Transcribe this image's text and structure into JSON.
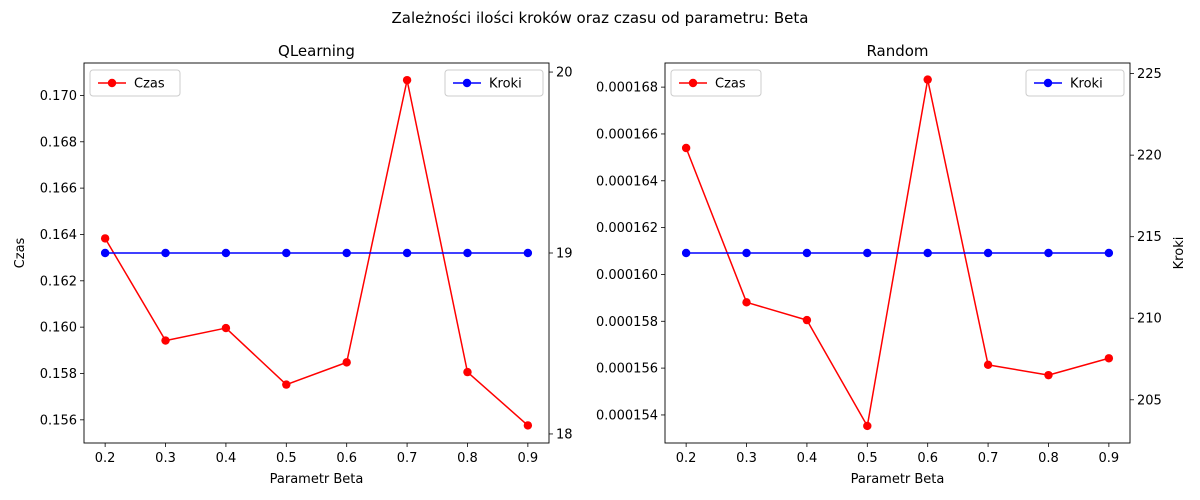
{
  "figure": {
    "suptitle": "Zależności ilości kroków oraz czasu od parametru: Beta"
  },
  "chart_data": [
    {
      "type": "line",
      "title": "QLearning",
      "xlabel": "Parametr Beta",
      "ylabel": "Czas",
      "y2label": "",
      "x": [
        0.2,
        0.3,
        0.4,
        0.5,
        0.6,
        0.7,
        0.8,
        0.9
      ],
      "xticks": [
        "0.2",
        "0.3",
        "0.4",
        "0.5",
        "0.6",
        "0.7",
        "0.8",
        "0.9"
      ],
      "xlim": [
        0.165,
        0.935
      ],
      "ylim": [
        0.155,
        0.1714
      ],
      "yticks": [
        "0.156",
        "0.158",
        "0.160",
        "0.162",
        "0.164",
        "0.166",
        "0.168",
        "0.170"
      ],
      "y2lim": [
        17.95,
        20.05
      ],
      "y2ticks": [
        "18",
        "19",
        "20"
      ],
      "grid": false,
      "series": [
        {
          "name": "Czas",
          "axis": "left",
          "color": "#ff0000",
          "legend": "top-left",
          "values": [
            0.16383,
            0.15942,
            0.15996,
            0.15752,
            0.15848,
            0.17066,
            0.15806,
            0.15576
          ]
        },
        {
          "name": "Kroki",
          "axis": "right",
          "color": "#0000ff",
          "legend": "top-right",
          "values": [
            19,
            19,
            19,
            19,
            19,
            19,
            19,
            19
          ]
        }
      ]
    },
    {
      "type": "line",
      "title": "Random",
      "xlabel": "Parametr Beta",
      "ylabel": "",
      "y2label": "Kroki",
      "x": [
        0.2,
        0.3,
        0.4,
        0.5,
        0.6,
        0.7,
        0.8,
        0.9
      ],
      "xticks": [
        "0.2",
        "0.3",
        "0.4",
        "0.5",
        "0.6",
        "0.7",
        "0.8",
        "0.9"
      ],
      "xlim": [
        0.165,
        0.935
      ],
      "ylim": [
        0.000152802,
        0.00016903
      ],
      "yticks": [
        "0.000154",
        "0.000156",
        "0.000158",
        "0.000160",
        "0.000162",
        "0.000164",
        "0.000166",
        "0.000168"
      ],
      "y2lim": [
        202.35,
        225.65
      ],
      "y2ticks": [
        "205",
        "210",
        "215",
        "220",
        "225"
      ],
      "grid": false,
      "series": [
        {
          "name": "Czas",
          "axis": "left",
          "color": "#ff0000",
          "legend": "top-left",
          "values": [
            0.0001654,
            0.00015881,
            0.00015805,
            0.00015353,
            0.00016832,
            0.00015614,
            0.0001557,
            0.00015642
          ]
        },
        {
          "name": "Kroki",
          "axis": "right",
          "color": "#0000ff",
          "legend": "top-right",
          "values": [
            214,
            214,
            214,
            214,
            214,
            214,
            214,
            214
          ]
        }
      ]
    }
  ]
}
